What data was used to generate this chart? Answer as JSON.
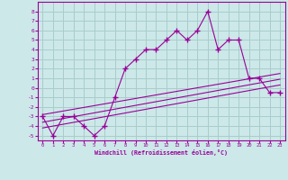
{
  "xlabel": "Windchill (Refroidissement éolien,°C)",
  "background_color": "#cce8e8",
  "grid_color": "#aacccc",
  "line_color": "#990099",
  "x_hours": [
    0,
    1,
    2,
    3,
    4,
    5,
    6,
    7,
    8,
    9,
    10,
    11,
    12,
    13,
    14,
    15,
    16,
    17,
    18,
    19,
    20,
    21,
    22,
    23
  ],
  "y_windchill": [
    -3,
    -5,
    -3,
    -3,
    -4,
    -5,
    -4,
    -1,
    2,
    3,
    4,
    4,
    5,
    6,
    5,
    6,
    8,
    4,
    5,
    5,
    1,
    1,
    -0.5,
    -0.5
  ],
  "regression_lines": [
    {
      "x0": 0,
      "y0": -4.2,
      "x1": 23,
      "y1": 0.3
    },
    {
      "x0": 0,
      "y0": -3.6,
      "x1": 23,
      "y1": 0.9
    },
    {
      "x0": 0,
      "y0": -2.8,
      "x1": 23,
      "y1": 1.5
    }
  ],
  "ylim": [
    -5.5,
    9.0
  ],
  "xlim": [
    -0.5,
    23.5
  ],
  "xticks": [
    0,
    1,
    2,
    3,
    4,
    5,
    6,
    7,
    8,
    9,
    10,
    11,
    12,
    13,
    14,
    15,
    16,
    17,
    18,
    19,
    20,
    21,
    22,
    23
  ],
  "yticks": [
    -5,
    -4,
    -3,
    -2,
    -1,
    0,
    1,
    2,
    3,
    4,
    5,
    6,
    7,
    8
  ]
}
